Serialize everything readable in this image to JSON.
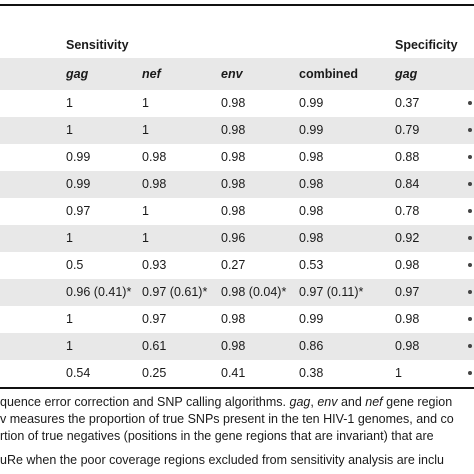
{
  "table": {
    "group_headers": {
      "sensitivity": "Sensitivity",
      "specificity": "Specificity"
    },
    "sub_headers": [
      "gag",
      "nef",
      "env",
      "combined",
      "gag"
    ],
    "rows": [
      {
        "gag": "1",
        "nef": "1",
        "env": "0.98",
        "combined": "0.99",
        "spec_gag": "0.37"
      },
      {
        "gag": "1",
        "nef": "1",
        "env": "0.98",
        "combined": "0.99",
        "spec_gag": "0.79"
      },
      {
        "gag": "0.99",
        "nef": "0.98",
        "env": "0.98",
        "combined": "0.98",
        "spec_gag": "0.88"
      },
      {
        "gag": "0.99",
        "nef": "0.98",
        "env": "0.98",
        "combined": "0.98",
        "spec_gag": "0.84"
      },
      {
        "gag": "0.97",
        "nef": "1",
        "env": "0.98",
        "combined": "0.98",
        "spec_gag": "0.78"
      },
      {
        "gag": "1",
        "nef": "1",
        "env": "0.96",
        "combined": "0.98",
        "spec_gag": "0.92"
      },
      {
        "gag": "0.5",
        "nef": "0.93",
        "env": "0.27",
        "combined": "0.53",
        "spec_gag": "0.98"
      },
      {
        "gag": "0.96 (0.41)*",
        "nef": "0.97 (0.61)*",
        "env": "0.98 (0.04)*",
        "combined": "0.97 (0.11)*",
        "spec_gag": "0.97"
      },
      {
        "gag": "1",
        "nef": "0.97",
        "env": "0.98",
        "combined": "0.99",
        "spec_gag": "0.98"
      },
      {
        "gag": "1",
        "nef": "0.61",
        "env": "0.98",
        "combined": "0.86",
        "spec_gag": "0.98"
      },
      {
        "gag": "0.54",
        "nef": "0.25",
        "env": "0.41",
        "combined": "0.38",
        "spec_gag": "1"
      }
    ]
  },
  "footnotes": {
    "line1_pre": "quence error correction and SNP calling algorithms. ",
    "line1_gag": "gag",
    "line1_sep1": ", ",
    "line1_env": "env",
    "line1_mid": " and ",
    "line1_nef": "nef",
    "line1_post": " gene region",
    "line2": "v measures the proportion of true SNPs present in the ten HIV-1 genomes, and co",
    "line3": "rtion of true negatives (positions in the gene regions that are invariant) that are",
    "line4": "uRe when the poor coverage regions excluded from sensitivity analysis are inclu"
  }
}
